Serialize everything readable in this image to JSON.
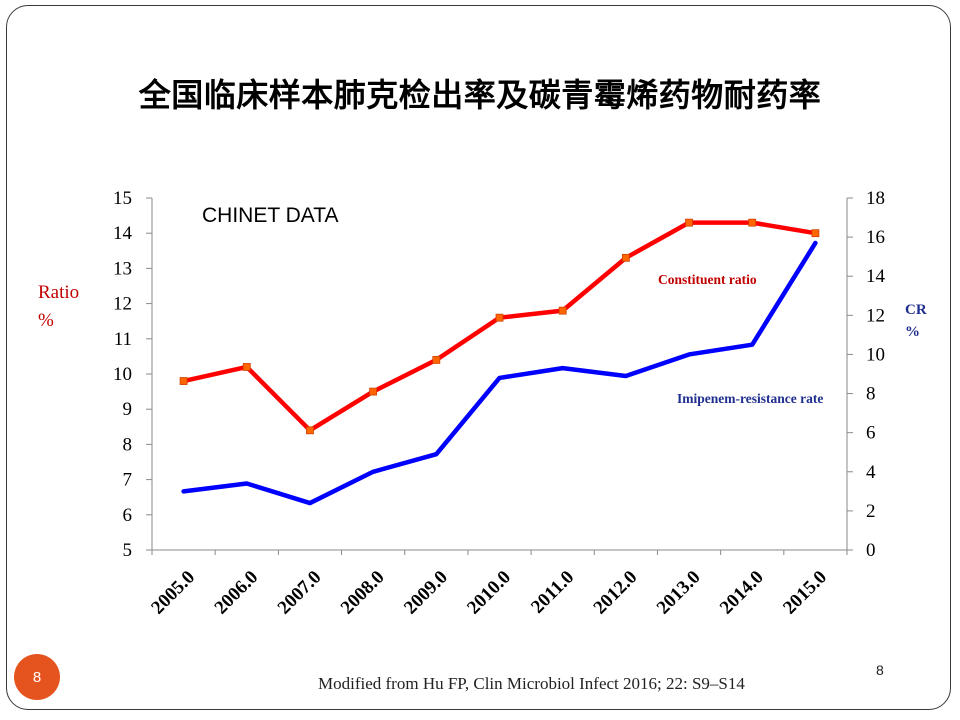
{
  "slide": {
    "title": "全国临床样本肺克检出率及碳青霉烯药物耐药率",
    "citation": "Modified from Hu FP, Clin Microbiol Infect 2016; 22: S9–S14",
    "page_number": "8",
    "page_badge": "8"
  },
  "chart_data": {
    "type": "line",
    "annotation": "CHINET DATA",
    "categories": [
      "2005.0",
      "2006.0",
      "2007.0",
      "2008.0",
      "2009.0",
      "2010.0",
      "2011.0",
      "2012.0",
      "2013.0",
      "2014.0",
      "2015.0"
    ],
    "left_axis": {
      "label_lines": [
        "Ratio",
        "%"
      ],
      "ylim": [
        5,
        15
      ],
      "ticks": [
        "5",
        "6",
        "7",
        "8",
        "9",
        "10",
        "11",
        "12",
        "13",
        "14",
        "15"
      ]
    },
    "right_axis": {
      "label_lines": [
        "CR",
        "%"
      ],
      "ylim": [
        0,
        18
      ],
      "ticks": [
        "0",
        "2",
        "4",
        "6",
        "8",
        "10",
        "12",
        "14",
        "16",
        "18"
      ]
    },
    "series": [
      {
        "name": "Constituent ratio",
        "axis": "left",
        "color": "#ff0000",
        "marker_color": "#ff6600",
        "values": [
          9.8,
          10.2,
          8.4,
          9.5,
          10.4,
          11.6,
          11.8,
          13.3,
          14.3,
          14.3,
          14.0
        ]
      },
      {
        "name": "Imipenem-resistance rate",
        "axis": "right",
        "color": "#0000ff",
        "values": [
          3.0,
          3.4,
          2.4,
          4.0,
          4.9,
          8.8,
          9.3,
          8.9,
          10.0,
          10.5,
          15.7
        ]
      }
    ],
    "grid": false,
    "legend": "inline labels"
  }
}
